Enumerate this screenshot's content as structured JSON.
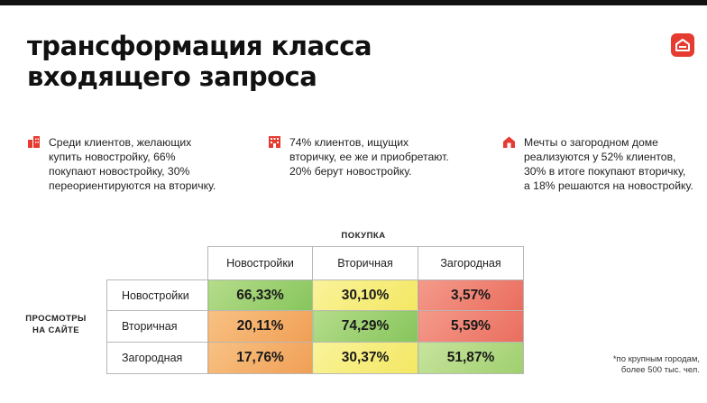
{
  "title": [
    "трансформация класса",
    "входящего запроса"
  ],
  "cards": [
    {
      "icon": "building-icon",
      "lines": [
        "Среди клиентов, желающих",
        "купить новостройку, 66%",
        "покупают новостройку, 30%",
        "переориентируются на вторичку."
      ]
    },
    {
      "icon": "apartment-block-icon",
      "lines": [
        "74% клиентов, ищущих",
        "вторичку, ее же и приобретают.",
        "20% берут новостройку."
      ]
    },
    {
      "icon": "house-icon",
      "lines": [
        "Мечты о загородном доме",
        "реализуются у 52% клиентов,",
        "30% в итоге покупают вторичку,",
        "а 18% решаются на новостройку."
      ]
    }
  ],
  "matrix": {
    "column_group_label": "ПОКУПКА",
    "row_group_label": [
      "ПРОСМОТРЫ",
      "НА САЙТЕ"
    ],
    "columns": [
      "Новостройки",
      "Вторичная",
      "Загородная"
    ],
    "rows": [
      {
        "label": "Новостройки",
        "values": [
          "66,33%",
          "30,10%",
          "3,57%"
        ]
      },
      {
        "label": "Вторичная",
        "values": [
          "20,11%",
          "74,29%",
          "5,59%"
        ]
      },
      {
        "label": "Загородная",
        "values": [
          "17,76%",
          "30,37%",
          "51,87%"
        ]
      }
    ]
  },
  "footnote": [
    "*по крупным городам,",
    "более 500 тыс. чел."
  ],
  "colors": {
    "accent": "#e63b30",
    "cell_green": "#86c55c",
    "cell_yellow": "#f3e762",
    "cell_red": "#ea6d5e",
    "cell_orange": "#f09f55"
  }
}
